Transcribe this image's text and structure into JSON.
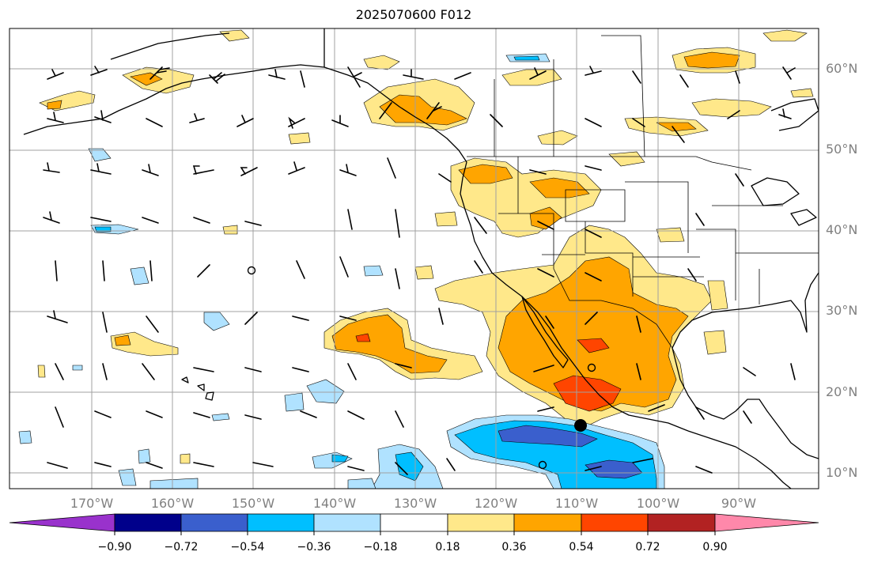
{
  "title": "2025070600 F012",
  "lat_labels": [
    "60°N",
    "50°N",
    "40°N",
    "30°N",
    "20°N",
    "10°N"
  ],
  "lon_labels": [
    "170°W",
    "160°W",
    "150°W",
    "140°W",
    "130°W",
    "120°W",
    "110°W",
    "100°W",
    "90°W"
  ],
  "colorbar": {
    "ticks": [
      "−0.90",
      "−0.72",
      "−0.54",
      "−0.36",
      "−0.18",
      "0.18",
      "0.36",
      "0.54",
      "0.72",
      "0.90"
    ],
    "colors": [
      "#9932cc",
      "#00008b",
      "#3a5fcd",
      "#00bfff",
      "#b0e2ff",
      "#ffffff",
      "#ffe88a",
      "#ffa500",
      "#ff4500",
      "#b22222",
      "#ff88aa"
    ]
  },
  "colors": {
    "grid": "#a0a0a0",
    "coast": "#000000",
    "label": "#808080"
  }
}
